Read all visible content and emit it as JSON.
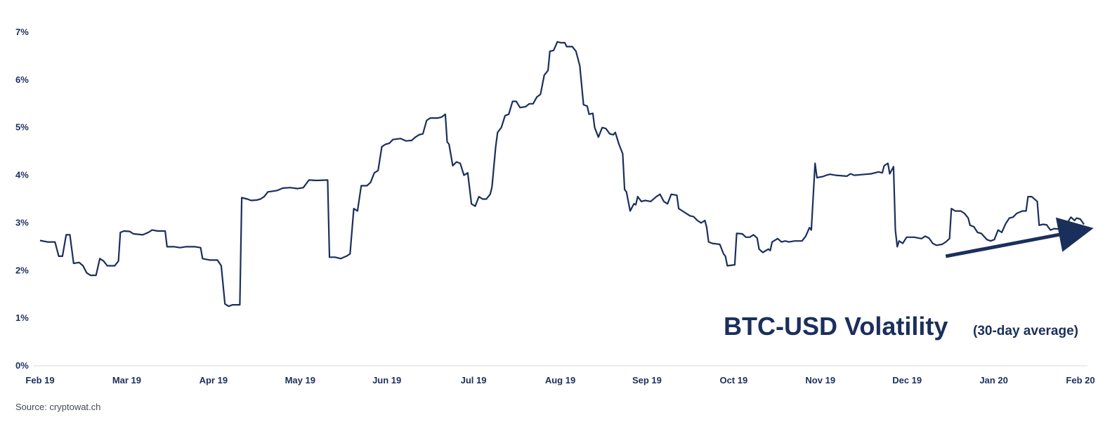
{
  "chart_data": {
    "type": "line",
    "title": "BTC-USD Volatility",
    "subtitle": "(30-day average)",
    "xlabel": "",
    "ylabel": "",
    "x_tick_labels": [
      "Feb 19",
      "Mar 19",
      "Apr 19",
      "May 19",
      "Jun 19",
      "Jul 19",
      "Aug 19",
      "Sep 19",
      "Oct 19",
      "Nov 19",
      "Dec 19",
      "Jan 20",
      "Feb 20"
    ],
    "y_tick_labels": [
      "0%",
      "1%",
      "2%",
      "3%",
      "4%",
      "5%",
      "6%",
      "7%"
    ],
    "ylim": [
      0,
      7
    ],
    "grid": false,
    "color": "#1b2f5c",
    "series": [
      {
        "values": [
          [
            0,
            2.63
          ],
          [
            4,
            2.6
          ],
          [
            8,
            2.6
          ],
          [
            10,
            2.3
          ],
          [
            12,
            2.3
          ],
          [
            14,
            2.75
          ],
          [
            16,
            2.75
          ],
          [
            18,
            2.15
          ],
          [
            21,
            2.17
          ],
          [
            23,
            2.1
          ],
          [
            25,
            1.95
          ],
          [
            27,
            1.9
          ],
          [
            30,
            1.9
          ],
          [
            32,
            2.25
          ],
          [
            34,
            2.2
          ],
          [
            36,
            2.1
          ],
          [
            38,
            2.1
          ],
          [
            40,
            2.1
          ],
          [
            42,
            2.2
          ],
          [
            43,
            2.8
          ],
          [
            45,
            2.83
          ],
          [
            48,
            2.82
          ],
          [
            50,
            2.77
          ],
          [
            55,
            2.75
          ],
          [
            58,
            2.8
          ],
          [
            60,
            2.85
          ],
          [
            63,
            2.83
          ],
          [
            67,
            2.83
          ],
          [
            68,
            2.5
          ],
          [
            72,
            2.5
          ],
          [
            75,
            2.48
          ],
          [
            78,
            2.5
          ],
          [
            83,
            2.5
          ],
          [
            86,
            2.48
          ],
          [
            87,
            2.25
          ],
          [
            91,
            2.22
          ],
          [
            95,
            2.22
          ],
          [
            97,
            2.1
          ],
          [
            99,
            1.3
          ],
          [
            101,
            1.25
          ],
          [
            103,
            1.28
          ],
          [
            107,
            1.28
          ],
          [
            108,
            3.53
          ],
          [
            111,
            3.5
          ],
          [
            113,
            3.47
          ],
          [
            116,
            3.48
          ],
          [
            118,
            3.5
          ],
          [
            120,
            3.55
          ],
          [
            122,
            3.65
          ],
          [
            127,
            3.68
          ],
          [
            130,
            3.73
          ],
          [
            134,
            3.74
          ],
          [
            138,
            3.72
          ],
          [
            141,
            3.74
          ],
          [
            144,
            3.9
          ],
          [
            148,
            3.89
          ],
          [
            154,
            3.9
          ],
          [
            155,
            2.28
          ],
          [
            158,
            2.28
          ],
          [
            161,
            2.25
          ],
          [
            164,
            2.3
          ],
          [
            166,
            2.35
          ],
          [
            168,
            3.3
          ],
          [
            170,
            3.25
          ],
          [
            172,
            3.78
          ],
          [
            175,
            3.78
          ],
          [
            177,
            3.85
          ],
          [
            179,
            4.05
          ],
          [
            181,
            4.1
          ],
          [
            183,
            4.6
          ],
          [
            185,
            4.65
          ],
          [
            187,
            4.67
          ],
          [
            189,
            4.75
          ],
          [
            193,
            4.77
          ],
          [
            196,
            4.72
          ],
          [
            199,
            4.73
          ],
          [
            201,
            4.8
          ],
          [
            203,
            4.85
          ],
          [
            205,
            4.87
          ],
          [
            207,
            5.15
          ],
          [
            209,
            5.2
          ],
          [
            213,
            5.2
          ],
          [
            215,
            5.22
          ],
          [
            217,
            5.28
          ],
          [
            218,
            4.7
          ],
          [
            219,
            4.65
          ],
          [
            221,
            4.2
          ],
          [
            223,
            4.28
          ],
          [
            225,
            4.25
          ],
          [
            227,
            4.0
          ],
          [
            229,
            4.05
          ],
          [
            231,
            3.4
          ],
          [
            233,
            3.35
          ],
          [
            235,
            3.55
          ],
          [
            237,
            3.5
          ],
          [
            239,
            3.5
          ],
          [
            241,
            3.6
          ],
          [
            242,
            3.75
          ],
          [
            244,
            4.6
          ],
          [
            245,
            4.9
          ],
          [
            247,
            5.0
          ],
          [
            249,
            5.25
          ],
          [
            251,
            5.28
          ],
          [
            253,
            5.55
          ],
          [
            255,
            5.55
          ],
          [
            257,
            5.42
          ],
          [
            260,
            5.44
          ],
          [
            262,
            5.5
          ],
          [
            264,
            5.5
          ],
          [
            266,
            5.64
          ],
          [
            268,
            5.7
          ],
          [
            270,
            6.1
          ],
          [
            272,
            6.2
          ],
          [
            273,
            6.6
          ],
          [
            275,
            6.62
          ],
          [
            277,
            6.8
          ],
          [
            279,
            6.78
          ],
          [
            281,
            6.78
          ],
          [
            282,
            6.7
          ],
          [
            285,
            6.7
          ],
          [
            287,
            6.6
          ],
          [
            289,
            6.3
          ],
          [
            291,
            5.48
          ],
          [
            293,
            5.45
          ],
          [
            294,
            5.28
          ],
          [
            296,
            5.3
          ],
          [
            297,
            5.0
          ],
          [
            299,
            4.8
          ],
          [
            301,
            5.0
          ],
          [
            303,
            4.98
          ],
          [
            305,
            4.87
          ],
          [
            307,
            4.85
          ],
          [
            308,
            4.9
          ],
          [
            310,
            4.65
          ],
          [
            312,
            4.45
          ],
          [
            313,
            3.7
          ],
          [
            314,
            3.65
          ],
          [
            316,
            3.25
          ],
          [
            318,
            3.4
          ],
          [
            319,
            3.38
          ],
          [
            320,
            3.55
          ],
          [
            322,
            3.45
          ],
          [
            324,
            3.47
          ],
          [
            327,
            3.45
          ],
          [
            330,
            3.55
          ],
          [
            332,
            3.6
          ],
          [
            334,
            3.45
          ],
          [
            336,
            3.4
          ],
          [
            338,
            3.6
          ],
          [
            341,
            3.58
          ],
          [
            342,
            3.3
          ],
          [
            344,
            3.25
          ],
          [
            346,
            3.2
          ],
          [
            348,
            3.15
          ],
          [
            350,
            3.13
          ],
          [
            352,
            3.05
          ],
          [
            354,
            3.0
          ],
          [
            356,
            3.05
          ],
          [
            357,
            2.9
          ],
          [
            358,
            2.6
          ],
          [
            360,
            2.57
          ],
          [
            364,
            2.55
          ],
          [
            366,
            2.35
          ],
          [
            367,
            2.3
          ],
          [
            368,
            2.1
          ],
          [
            372,
            2.12
          ],
          [
            373,
            2.78
          ],
          [
            376,
            2.77
          ],
          [
            378,
            2.7
          ],
          [
            380,
            2.7
          ],
          [
            382,
            2.75
          ],
          [
            384,
            2.68
          ],
          [
            385,
            2.45
          ],
          [
            387,
            2.38
          ],
          [
            390,
            2.45
          ],
          [
            391,
            2.42
          ],
          [
            392,
            2.6
          ],
          [
            395,
            2.67
          ],
          [
            397,
            2.6
          ],
          [
            399,
            2.62
          ],
          [
            401,
            2.6
          ],
          [
            404,
            2.62
          ],
          [
            408,
            2.62
          ],
          [
            410,
            2.72
          ],
          [
            412,
            2.9
          ],
          [
            413,
            2.85
          ],
          [
            415,
            4.25
          ],
          [
            416,
            3.95
          ],
          [
            419,
            3.97
          ],
          [
            421,
            4.0
          ],
          [
            423,
            4.02
          ],
          [
            426,
            4.0
          ],
          [
            432,
            3.98
          ],
          [
            434,
            4.03
          ],
          [
            436,
            4.0
          ],
          [
            442,
            4.02
          ],
          [
            445,
            4.03
          ],
          [
            447,
            4.05
          ],
          [
            449,
            4.07
          ],
          [
            451,
            4.05
          ],
          [
            452,
            4.2
          ],
          [
            454,
            4.25
          ],
          [
            455,
            4.03
          ],
          [
            457,
            4.18
          ],
          [
            458,
            2.85
          ],
          [
            459,
            2.5
          ],
          [
            460,
            2.62
          ],
          [
            462,
            2.57
          ],
          [
            464,
            2.7
          ],
          [
            468,
            2.7
          ],
          [
            472,
            2.67
          ],
          [
            474,
            2.72
          ],
          [
            476,
            2.68
          ],
          [
            478,
            2.57
          ],
          [
            480,
            2.53
          ],
          [
            483,
            2.55
          ],
          [
            485,
            2.6
          ],
          [
            487,
            2.67
          ],
          [
            488,
            3.3
          ],
          [
            490,
            3.25
          ],
          [
            493,
            3.25
          ],
          [
            495,
            3.2
          ],
          [
            497,
            3.1
          ],
          [
            498,
            2.95
          ],
          [
            500,
            2.92
          ],
          [
            502,
            2.8
          ],
          [
            504,
            2.78
          ],
          [
            507,
            2.65
          ],
          [
            509,
            2.62
          ],
          [
            511,
            2.65
          ],
          [
            513,
            2.85
          ],
          [
            515,
            2.8
          ],
          [
            517,
            2.98
          ],
          [
            519,
            3.1
          ],
          [
            521,
            3.12
          ],
          [
            523,
            3.2
          ],
          [
            526,
            3.25
          ],
          [
            528,
            3.25
          ],
          [
            529,
            3.55
          ],
          [
            531,
            3.55
          ],
          [
            534,
            3.45
          ],
          [
            535,
            2.95
          ],
          [
            537,
            2.97
          ],
          [
            539,
            2.96
          ],
          [
            541,
            2.85
          ],
          [
            543,
            2.88
          ],
          [
            546,
            2.87
          ],
          [
            548,
            2.9
          ],
          [
            550,
            3.0
          ],
          [
            552,
            3.12
          ],
          [
            554,
            3.05
          ],
          [
            555,
            3.1
          ],
          [
            557,
            3.08
          ],
          [
            559,
            2.97
          ]
        ]
      }
    ],
    "annotations": [
      {
        "type": "arrow",
        "label": "upward trend",
        "from": [
          485,
          2.3
        ],
        "to": [
          559,
          2.85
        ]
      }
    ]
  },
  "source_text": "Source: cryptowat.ch"
}
